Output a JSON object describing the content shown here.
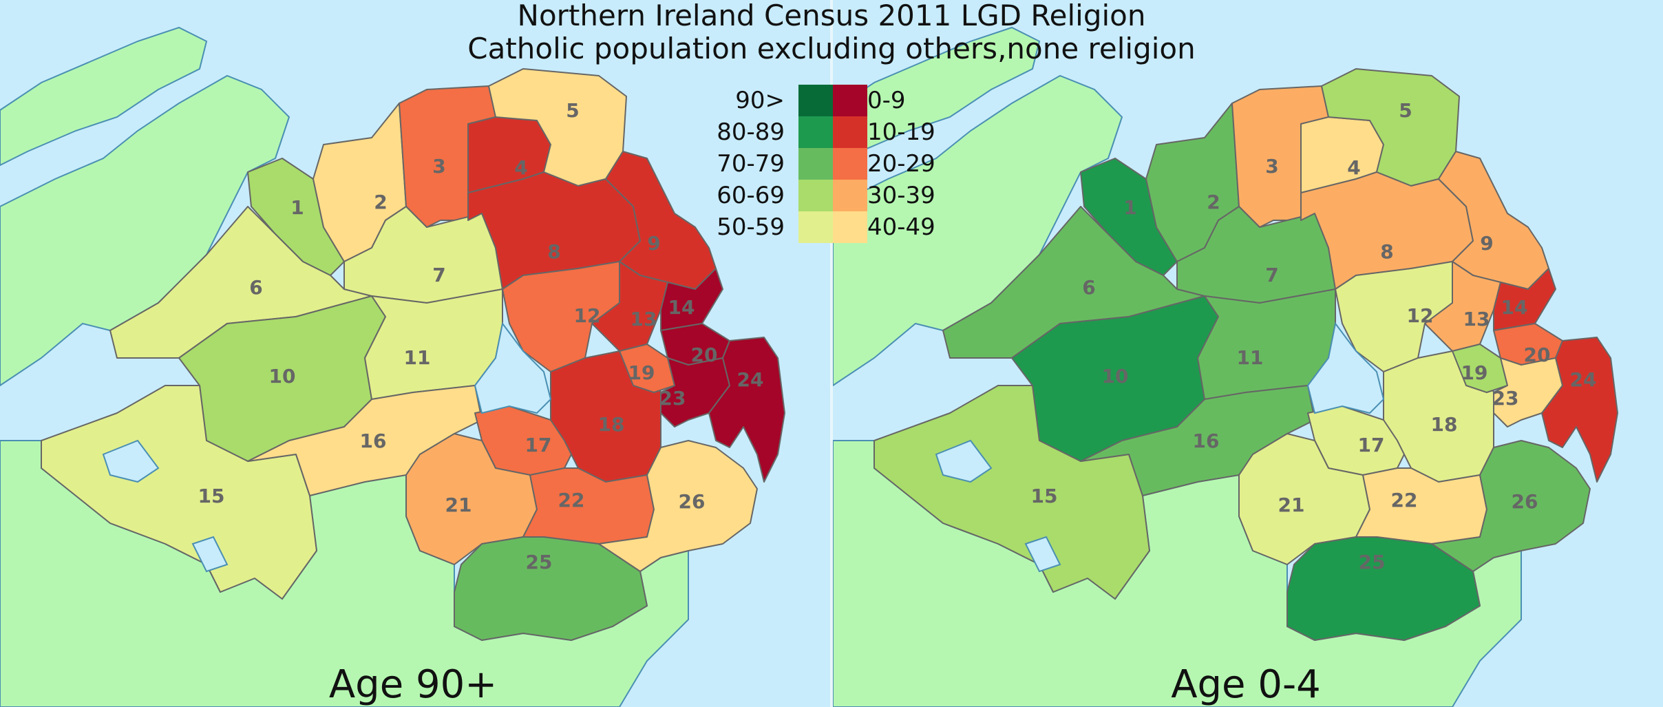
{
  "title": "Northern Ireland Census 2011 LGD Religion",
  "subtitle": "Catholic population excluding others,none religion",
  "colors": {
    "sea": "#c8ecfb",
    "land": "#b5f7b1",
    "border": "#666666",
    "green": [
      "#e2ef8d",
      "#a9dc6b",
      "#67bb5f",
      "#1e9a4e",
      "#076b38"
    ],
    "red": [
      "#ffdd8a",
      "#fdad63",
      "#f46f45",
      "#d63129",
      "#a50528"
    ]
  },
  "legend": {
    "green_labels": [
      "90>",
      "80-89",
      "70-79",
      "60-69",
      "50-59"
    ],
    "red_labels": [
      "0-9",
      "10-19",
      "20-29",
      "30-39",
      "40-49"
    ]
  },
  "panels": [
    {
      "label": "Age 90+",
      "districts": [
        {
          "id": "1",
          "side": "green",
          "level": 1
        },
        {
          "id": "2",
          "side": "red",
          "level": 0
        },
        {
          "id": "3",
          "side": "red",
          "level": 2
        },
        {
          "id": "4",
          "side": "red",
          "level": 3
        },
        {
          "id": "5",
          "side": "red",
          "level": 0
        },
        {
          "id": "6",
          "side": "green",
          "level": 0
        },
        {
          "id": "7",
          "side": "green",
          "level": 0
        },
        {
          "id": "8",
          "side": "red",
          "level": 3
        },
        {
          "id": "9",
          "side": "red",
          "level": 3
        },
        {
          "id": "10",
          "side": "green",
          "level": 1
        },
        {
          "id": "11",
          "side": "green",
          "level": 0
        },
        {
          "id": "12",
          "side": "red",
          "level": 2
        },
        {
          "id": "13",
          "side": "red",
          "level": 3
        },
        {
          "id": "14",
          "side": "red",
          "level": 4
        },
        {
          "id": "15",
          "side": "green",
          "level": 0
        },
        {
          "id": "16",
          "side": "red",
          "level": 0
        },
        {
          "id": "17",
          "side": "red",
          "level": 2
        },
        {
          "id": "18",
          "side": "red",
          "level": 3
        },
        {
          "id": "19",
          "side": "red",
          "level": 2
        },
        {
          "id": "20",
          "side": "red",
          "level": 4
        },
        {
          "id": "21",
          "side": "red",
          "level": 1
        },
        {
          "id": "22",
          "side": "red",
          "level": 2
        },
        {
          "id": "23",
          "side": "red",
          "level": 4
        },
        {
          "id": "24",
          "side": "red",
          "level": 4
        },
        {
          "id": "25",
          "side": "green",
          "level": 2
        },
        {
          "id": "26",
          "side": "red",
          "level": 0
        }
      ]
    },
    {
      "label": "Age 0-4",
      "districts": [
        {
          "id": "1",
          "side": "green",
          "level": 3
        },
        {
          "id": "2",
          "side": "green",
          "level": 2
        },
        {
          "id": "3",
          "side": "red",
          "level": 1
        },
        {
          "id": "4",
          "side": "red",
          "level": 0
        },
        {
          "id": "5",
          "side": "green",
          "level": 1
        },
        {
          "id": "6",
          "side": "green",
          "level": 2
        },
        {
          "id": "7",
          "side": "green",
          "level": 2
        },
        {
          "id": "8",
          "side": "red",
          "level": 1
        },
        {
          "id": "9",
          "side": "red",
          "level": 1
        },
        {
          "id": "10",
          "side": "green",
          "level": 3
        },
        {
          "id": "11",
          "side": "green",
          "level": 2
        },
        {
          "id": "12",
          "side": "green",
          "level": 0
        },
        {
          "id": "13",
          "side": "red",
          "level": 1
        },
        {
          "id": "14",
          "side": "red",
          "level": 3
        },
        {
          "id": "15",
          "side": "green",
          "level": 1
        },
        {
          "id": "16",
          "side": "green",
          "level": 2
        },
        {
          "id": "17",
          "side": "green",
          "level": 0
        },
        {
          "id": "18",
          "side": "green",
          "level": 0
        },
        {
          "id": "19",
          "side": "green",
          "level": 1
        },
        {
          "id": "20",
          "side": "red",
          "level": 2
        },
        {
          "id": "21",
          "side": "green",
          "level": 0
        },
        {
          "id": "22",
          "side": "red",
          "level": 0
        },
        {
          "id": "23",
          "side": "red",
          "level": 0
        },
        {
          "id": "24",
          "side": "red",
          "level": 3
        },
        {
          "id": "25",
          "side": "green",
          "level": 3
        },
        {
          "id": "26",
          "side": "green",
          "level": 2
        }
      ]
    }
  ]
}
